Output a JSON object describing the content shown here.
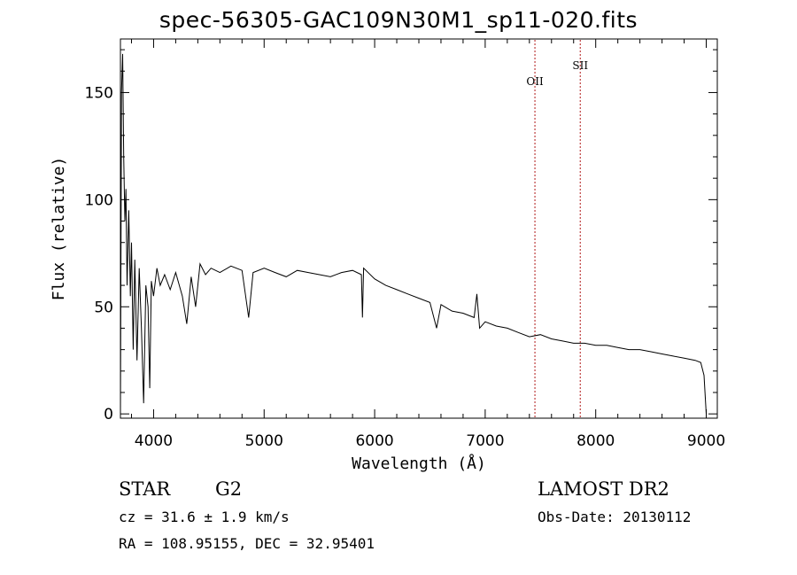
{
  "chart_data": {
    "type": "line",
    "title": "spec-56305-GAC109N30M1_sp11-020.fits",
    "xlabel": "Wavelength (Å)",
    "ylabel": "Flux (relative)",
    "xlim": [
      3700,
      9100
    ],
    "ylim": [
      -2,
      175
    ],
    "xticks": [
      4000,
      5000,
      6000,
      7000,
      8000,
      9000
    ],
    "yticks": [
      0,
      50,
      100,
      150
    ],
    "grid": false,
    "series": [
      {
        "x": [
          3700,
          3710,
          3720,
          3730,
          3740,
          3750,
          3760,
          3775,
          3790,
          3800,
          3815,
          3830,
          3850,
          3870,
          3890,
          3910,
          3930,
          3950,
          3965,
          3980,
          4000,
          4030,
          4060,
          4100,
          4150,
          4200,
          4260,
          4300,
          4340,
          4380,
          4420,
          4470,
          4520,
          4600,
          4700,
          4800,
          4860,
          4900,
          5000,
          5100,
          5200,
          5300,
          5400,
          5500,
          5600,
          5700,
          5800,
          5880,
          5890,
          5900,
          6000,
          6100,
          6200,
          6300,
          6400,
          6500,
          6560,
          6600,
          6700,
          6800,
          6900,
          6925,
          6950,
          7000,
          7100,
          7200,
          7300,
          7400,
          7500,
          7600,
          7700,
          7800,
          7900,
          8000,
          8100,
          8200,
          8300,
          8400,
          8500,
          8600,
          8700,
          8800,
          8900,
          8950,
          8980,
          9000
        ],
        "y": [
          0,
          150,
          168,
          120,
          90,
          105,
          60,
          95,
          55,
          80,
          30,
          72,
          25,
          68,
          40,
          5,
          60,
          50,
          12,
          62,
          55,
          68,
          60,
          65,
          58,
          66,
          55,
          42,
          64,
          50,
          70,
          65,
          68,
          66,
          69,
          67,
          45,
          66,
          68,
          66,
          64,
          67,
          66,
          65,
          64,
          66,
          67,
          65,
          45,
          68,
          63,
          60,
          58,
          56,
          54,
          52,
          40,
          51,
          48,
          47,
          45,
          56,
          40,
          43,
          41,
          40,
          38,
          36,
          37,
          35,
          34,
          33,
          33,
          32,
          32,
          31,
          30,
          30,
          29,
          28,
          27,
          26,
          25,
          24,
          18,
          0
        ]
      }
    ],
    "lines": [
      {
        "label": "OII",
        "x": 7450
      },
      {
        "label": "SII",
        "x": 7860
      }
    ]
  },
  "annotations": {
    "class_label": "STAR",
    "subclass_label": "G2",
    "release": "LAMOST DR2",
    "cz": "cz = 31.6 ± 1.9 km/s",
    "obs_date": "Obs-Date: 20130112",
    "radec": "RA = 108.95155, DEC =  32.95401"
  }
}
